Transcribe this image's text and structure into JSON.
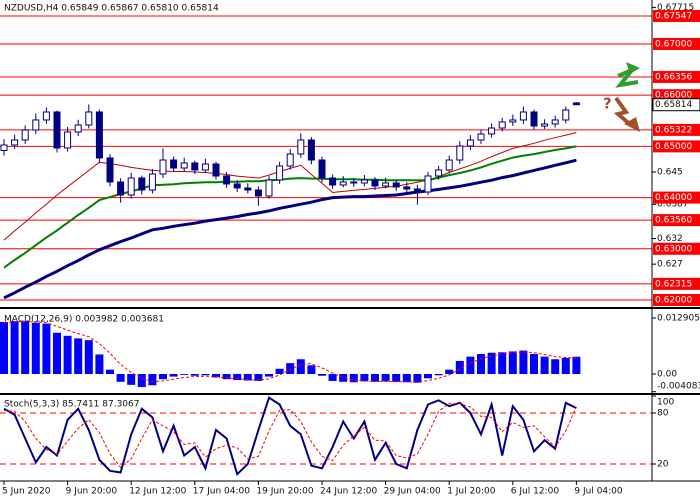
{
  "chart_data": [
    {
      "type": "candlestick",
      "title": "NZDUSD,H4 0.65849 0.65867 0.65810 0.65814",
      "categories": [
        "5 Jun 2020",
        null,
        null,
        null,
        null,
        null,
        "9 Jun 20:00",
        null,
        null,
        null,
        null,
        null,
        "12 Jun 12:00",
        null,
        null,
        null,
        null,
        null,
        "17 Jun 04:00",
        null,
        null,
        null,
        null,
        null,
        "19 Jun 20:00",
        null,
        null,
        null,
        null,
        null,
        "24 Jun 12:00",
        null,
        null,
        null,
        null,
        null,
        "29 Jun 04:00",
        null,
        null,
        null,
        null,
        null,
        "1 Jul 20:00",
        null,
        null,
        null,
        null,
        null,
        "6 Jul 12:00",
        null,
        null,
        null,
        null,
        null,
        "9 Jul 04:00"
      ],
      "open": [
        0.6492,
        0.65027,
        0.65125,
        0.6532,
        0.65516,
        0.65672,
        0.64969,
        0.65281,
        0.65418,
        0.65672,
        0.64774,
        0.64305,
        0.64051,
        0.64383,
        0.64148,
        0.64461,
        0.64734,
        0.64578,
        0.64676,
        0.64539,
        0.64656,
        0.64422,
        0.64266,
        0.64188,
        0.64148,
        0.64031,
        0.64344,
        0.64617,
        0.64852,
        0.65125,
        0.64734,
        0.64383,
        0.64246,
        0.64305,
        0.64285,
        0.64344,
        0.64227,
        0.64285,
        0.64207,
        0.64168,
        0.64109,
        0.64422,
        0.64539,
        0.64734,
        0.65008,
        0.65125,
        0.65242,
        0.65359,
        0.65477,
        0.65516,
        0.65672,
        0.65398,
        0.65438,
        0.65516,
        0.65849
      ],
      "high": [
        0.6514,
        0.6523,
        0.6541,
        0.6564,
        0.6576,
        0.657,
        0.6538,
        0.6552,
        0.6582,
        0.6572,
        0.6485,
        0.6438,
        0.6448,
        0.6443,
        0.6456,
        0.6496,
        0.648,
        0.6478,
        0.6472,
        0.6476,
        0.647,
        0.645,
        0.6434,
        0.6428,
        0.6422,
        0.6442,
        0.647,
        0.6495,
        0.6526,
        0.6518,
        0.648,
        0.6445,
        0.6442,
        0.6438,
        0.6444,
        0.644,
        0.6439,
        0.6434,
        0.643,
        0.6425,
        0.645,
        0.6462,
        0.6482,
        0.651,
        0.6522,
        0.6533,
        0.6545,
        0.6556,
        0.6562,
        0.6578,
        0.6572,
        0.6553,
        0.656,
        0.6578,
        0.65867
      ],
      "low": [
        0.6482,
        0.6495,
        0.6505,
        0.6524,
        0.6544,
        0.6488,
        0.649,
        0.652,
        0.6535,
        0.6468,
        0.6422,
        0.639,
        0.6398,
        0.6406,
        0.6408,
        0.6438,
        0.645,
        0.6451,
        0.6446,
        0.6448,
        0.6435,
        0.6419,
        0.6411,
        0.6408,
        0.6384,
        0.6398,
        0.6427,
        0.6455,
        0.6478,
        0.6465,
        0.643,
        0.6417,
        0.642,
        0.6421,
        0.6422,
        0.6415,
        0.6418,
        0.6413,
        0.6409,
        0.6386,
        0.6405,
        0.6435,
        0.6447,
        0.6466,
        0.6493,
        0.6505,
        0.6517,
        0.6529,
        0.654,
        0.6544,
        0.6533,
        0.6534,
        0.6537,
        0.6545,
        0.6581
      ],
      "close": [
        0.65027,
        0.65125,
        0.6532,
        0.65516,
        0.65672,
        0.64969,
        0.65281,
        0.65418,
        0.65672,
        0.64774,
        0.64305,
        0.64051,
        0.64383,
        0.64148,
        0.64461,
        0.64734,
        0.64578,
        0.64676,
        0.64539,
        0.64656,
        0.64422,
        0.64266,
        0.64188,
        0.64148,
        0.64031,
        0.64344,
        0.64617,
        0.64852,
        0.65125,
        0.64734,
        0.64383,
        0.64246,
        0.64305,
        0.64285,
        0.64344,
        0.64227,
        0.64285,
        0.64207,
        0.64168,
        0.64109,
        0.64422,
        0.64539,
        0.64734,
        0.65008,
        0.65125,
        0.65242,
        0.65359,
        0.65477,
        0.65516,
        0.65672,
        0.65398,
        0.65438,
        0.65516,
        0.65711,
        0.65814
      ],
      "color": "#000080",
      "series": [
        {
          "color": "#c00000",
          "values": [
            0.6317,
            0.6335,
            0.6352,
            0.637,
            0.6387,
            0.6405,
            0.6421,
            0.6437,
            0.6453,
            0.6469,
            0.6466,
            0.6463,
            0.6459,
            0.6456,
            0.6453,
            0.6452,
            0.6451,
            0.6451,
            0.645,
            0.6449,
            0.6447,
            0.6445,
            0.6442,
            0.644,
            0.6438,
            0.6444,
            0.6451,
            0.6457,
            0.6463,
            0.6445,
            0.6428,
            0.641,
            0.6412,
            0.6414,
            0.6416,
            0.6418,
            0.642,
            0.6422,
            0.6426,
            0.643,
            0.6434,
            0.6441,
            0.6449,
            0.6456,
            0.6463,
            0.6471,
            0.648,
            0.6488,
            0.6496,
            0.6501,
            0.6506,
            0.6512,
            0.6517,
            0.6522,
            0.6527
          ]
        },
        {
          "color": "#008000",
          "values": [
            0.6263,
            0.6278,
            0.6292,
            0.6307,
            0.6322,
            0.6336,
            0.6351,
            0.6366,
            0.638,
            0.6395,
            0.6401,
            0.6407,
            0.6412,
            0.6418,
            0.6424,
            0.6425,
            0.6426,
            0.6428,
            0.6429,
            0.643,
            0.643,
            0.6431,
            0.6431,
            0.6432,
            0.6432,
            0.6434,
            0.6435,
            0.6437,
            0.6438,
            0.6437,
            0.6437,
            0.6436,
            0.6436,
            0.6436,
            0.6435,
            0.6435,
            0.6434,
            0.6434,
            0.6434,
            0.6434,
            0.6434,
            0.6439,
            0.6444,
            0.6448,
            0.6453,
            0.6459,
            0.6466,
            0.6472,
            0.6478,
            0.6482,
            0.6485,
            0.6489,
            0.6493,
            0.6496,
            0.65
          ]
        },
        {
          "color": "#000080",
          "values": [
            0.6204,
            0.6214,
            0.6225,
            0.6235,
            0.6246,
            0.6256,
            0.6267,
            0.6277,
            0.6288,
            0.6298,
            0.6306,
            0.6314,
            0.6321,
            0.6329,
            0.6337,
            0.634,
            0.6344,
            0.6347,
            0.635,
            0.6354,
            0.6357,
            0.636,
            0.6363,
            0.6367,
            0.637,
            0.6374,
            0.6379,
            0.6383,
            0.6387,
            0.6391,
            0.6396,
            0.64,
            0.6401,
            0.6402,
            0.6402,
            0.6403,
            0.6404,
            0.6405,
            0.6408,
            0.6411,
            0.6413,
            0.6416,
            0.6419,
            0.6422,
            0.6426,
            0.643,
            0.6434,
            0.6439,
            0.6443,
            0.6448,
            0.6453,
            0.6458,
            0.6463,
            0.6468,
            0.6473
          ]
        }
      ],
      "ylim": [
        0.61863,
        0.67859
      ],
      "yticks": [
        0.67715,
        0.645,
        0.6387,
        0.632,
        0.627
      ],
      "levels": [
        0.67547,
        {
          "value": 0.67,
          "label": "0.67000"
        },
        0.66356,
        {
          "value": 0.66,
          "label": "0.66000"
        },
        0.65322,
        {
          "value": 0.65,
          "label": "0.65000"
        },
        {
          "value": 0.64,
          "label": "0.64000"
        },
        {
          "value": 0.6356,
          "label": "0.63560"
        },
        {
          "value": 0.63,
          "label": "0.63000"
        },
        0.62315,
        {
          "value": 0.62,
          "label": "0.62000"
        }
      ],
      "level_color": "#ff0000",
      "last_price": 0.65814,
      "annotation": "?"
    },
    {
      "type": "macd",
      "title": "MACD(12,26,9) 0.003982 0.003681",
      "values": [
        0.012,
        0.0122,
        0.0121,
        0.0118,
        0.0116,
        0.0095,
        0.0088,
        0.0082,
        0.0078,
        0.0045,
        0.001,
        -0.0018,
        -0.0025,
        -0.003,
        -0.0026,
        -0.0012,
        -0.0006,
        -0.0002,
        -0.0004,
        -0.0003,
        -0.0008,
        -0.0012,
        -0.0014,
        -0.0015,
        -0.0016,
        -0.0006,
        0.0012,
        0.0025,
        0.0034,
        0.002,
        -0.0004,
        -0.0016,
        -0.0018,
        -0.0019,
        -0.0017,
        -0.0018,
        -0.0017,
        -0.0018,
        -0.0019,
        -0.002,
        -0.001,
        -0.0003,
        0.001,
        0.003,
        0.004,
        0.0046,
        0.0049,
        0.005,
        0.0052,
        0.0054,
        0.0046,
        0.004,
        0.0034,
        0.0037,
        0.003982
      ],
      "color": "#0000ff",
      "signal": {
        "color": "#ff0000",
        "values": [
          0.0118,
          0.012,
          0.0121,
          0.012,
          0.0118,
          0.011,
          0.0101,
          0.0093,
          0.0086,
          0.007,
          0.0048,
          0.0022,
          0.0004,
          -0.001,
          -0.0018,
          -0.0016,
          -0.0012,
          -0.0008,
          -0.0006,
          -0.0005,
          -0.0006,
          -0.0009,
          -0.0011,
          -0.0013,
          -0.0014,
          -0.0011,
          -0.0002,
          0.001,
          0.0022,
          0.0024,
          0.0014,
          0.0002,
          -0.0008,
          -0.0014,
          -0.0016,
          -0.0017,
          -0.0017,
          -0.0018,
          -0.0018,
          -0.0019,
          -0.0015,
          -0.001,
          -0.0002,
          0.0012,
          0.0025,
          0.0035,
          0.0042,
          0.0046,
          0.0049,
          0.0051,
          0.0049,
          0.0045,
          0.004,
          0.0038,
          0.003681
        ]
      },
      "ylim": [
        -0.00415,
        0.01452
      ],
      "yticks": [
        0.012905,
        {
          "value": 0,
          "label": "0.00"
        },
        -0.004083
      ]
    },
    {
      "type": "stoch",
      "title": "Stoch(5,3,3) 85.7411 87.3067",
      "series": [
        {
          "color": "#000080",
          "values": [
            85,
            78,
            50,
            22,
            40,
            30,
            72,
            85,
            60,
            25,
            12,
            10,
            55,
            85,
            75,
            35,
            65,
            30,
            40,
            15,
            60,
            50,
            8,
            20,
            60,
            98,
            90,
            65,
            55,
            18,
            15,
            40,
            70,
            50,
            70,
            25,
            45,
            20,
            15,
            60,
            90,
            95,
            88,
            92,
            80,
            55,
            90,
            30,
            88,
            72,
            35,
            48,
            38,
            92,
            85.7411
          ]
        },
        {
          "color": "#ff0000",
          "values": [
            83,
            82,
            70,
            50,
            37,
            31,
            47,
            62,
            72,
            57,
            32,
            16,
            26,
            50,
            72,
            65,
            58,
            43,
            45,
            28,
            38,
            42,
            39,
            26,
            29,
            59,
            83,
            84,
            70,
            46,
            29,
            24,
            42,
            53,
            63,
            48,
            47,
            30,
            27,
            32,
            55,
            82,
            91,
            91,
            87,
            76,
            75,
            58,
            69,
            63,
            65,
            52,
            40,
            59,
            87.3067
          ]
        }
      ],
      "ylim": [
        0,
        100
      ],
      "yticks": [
        100,
        80,
        20
      ],
      "levels": [
        80,
        20
      ],
      "level_color": "#ff0000"
    }
  ]
}
